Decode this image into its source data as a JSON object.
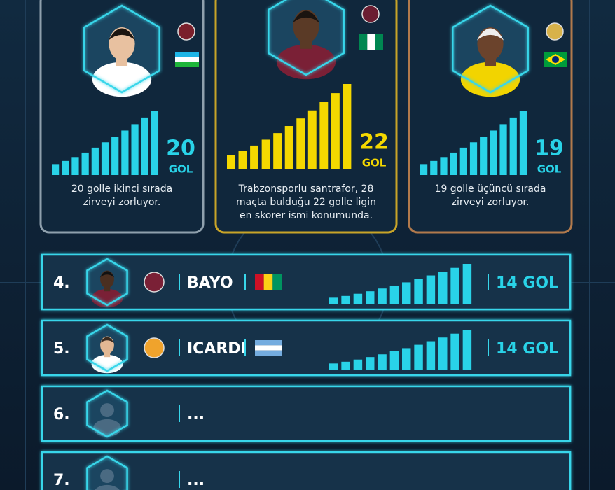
{
  "podium": [
    {
      "goals": 20,
      "unit": "GOL",
      "description": [
        "20 golle ikinci sırada",
        "zirveyi zorluyor."
      ]
    },
    {
      "goals": 22,
      "unit": "GOL",
      "description": [
        "Trabzonsporlu santrafor, 28",
        "maçta bulduğu 22 golle ligin",
        "en skorer ismi konumunda."
      ]
    },
    {
      "goals": 19,
      "unit": "GOL",
      "description": [
        "19 golle üçüncü sırada",
        "zirveyi zorluyor."
      ]
    }
  ],
  "rows": [
    {
      "rank": "4.",
      "name": "BAYO",
      "goals": 14,
      "unit": "GOL"
    },
    {
      "rank": "5.",
      "name": "ICARDI",
      "goals": 14,
      "unit": "GOL"
    },
    {
      "rank": "6.",
      "name": "..."
    },
    {
      "rank": "7.",
      "name": "..."
    }
  ]
}
